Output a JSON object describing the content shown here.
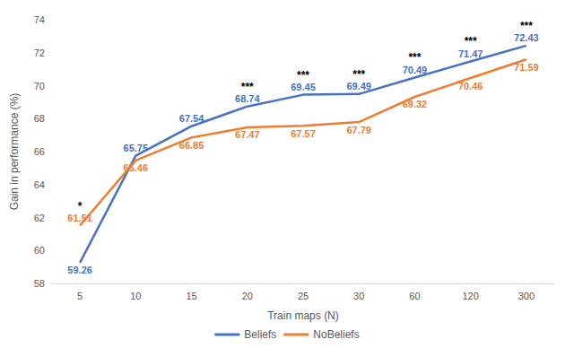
{
  "chart_data": {
    "type": "line",
    "x_label": "Train maps (N)",
    "y_label": "Gain in performance (%)",
    "categories": [
      "5",
      "10",
      "15",
      "20",
      "25",
      "30",
      "60",
      "120",
      "300"
    ],
    "series": [
      {
        "name": "Beliefs",
        "color": "#4472c4",
        "values": [
          59.26,
          65.75,
          67.54,
          68.74,
          69.45,
          69.49,
          70.49,
          71.47,
          72.43
        ]
      },
      {
        "name": "NoBeliefs",
        "color": "#ed7d31",
        "values": [
          61.51,
          65.46,
          66.85,
          67.47,
          67.57,
          67.79,
          69.32,
          70.46,
          71.59
        ]
      }
    ],
    "annotations": [
      {
        "x": "5",
        "text": "*"
      },
      {
        "x": "20",
        "text": "***"
      },
      {
        "x": "25",
        "text": "***"
      },
      {
        "x": "30",
        "text": "***"
      },
      {
        "x": "60",
        "text": "***"
      },
      {
        "x": "120",
        "text": "***"
      },
      {
        "x": "300",
        "text": "***"
      }
    ],
    "ylim": [
      58,
      74
    ],
    "yticks": [
      58,
      60,
      62,
      64,
      66,
      68,
      70,
      72,
      74
    ],
    "grid": false,
    "legend": "bottom",
    "data_labels": true
  }
}
